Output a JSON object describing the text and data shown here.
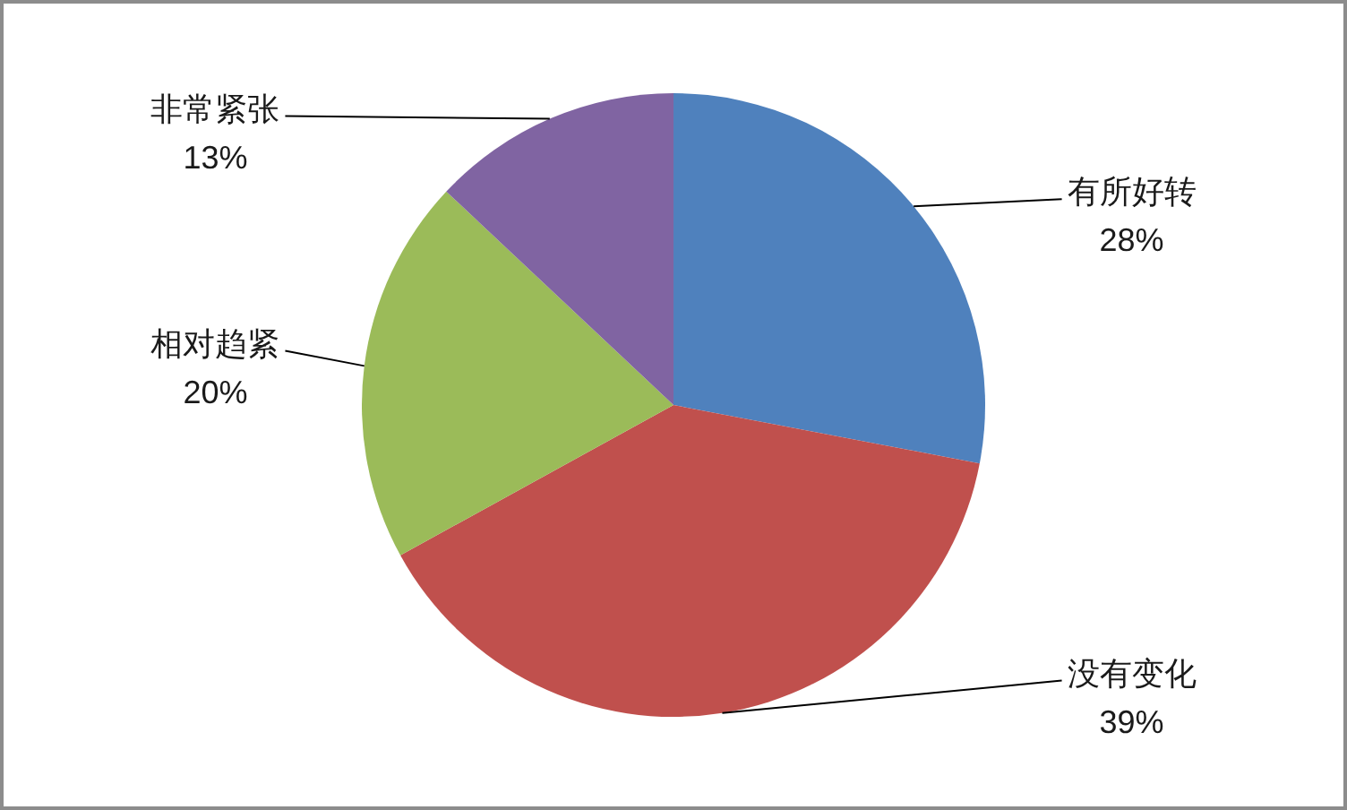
{
  "chart_data": {
    "type": "pie",
    "categories": [
      "有所好转",
      "没有变化",
      "相对趋紧",
      "非常紧张"
    ],
    "values": [
      28,
      39,
      20,
      13
    ],
    "colors": [
      "#4f81bd",
      "#c0504d",
      "#9bbb59",
      "#8064a2"
    ],
    "value_labels": [
      "28%",
      "39%",
      "20%",
      "13%"
    ]
  }
}
